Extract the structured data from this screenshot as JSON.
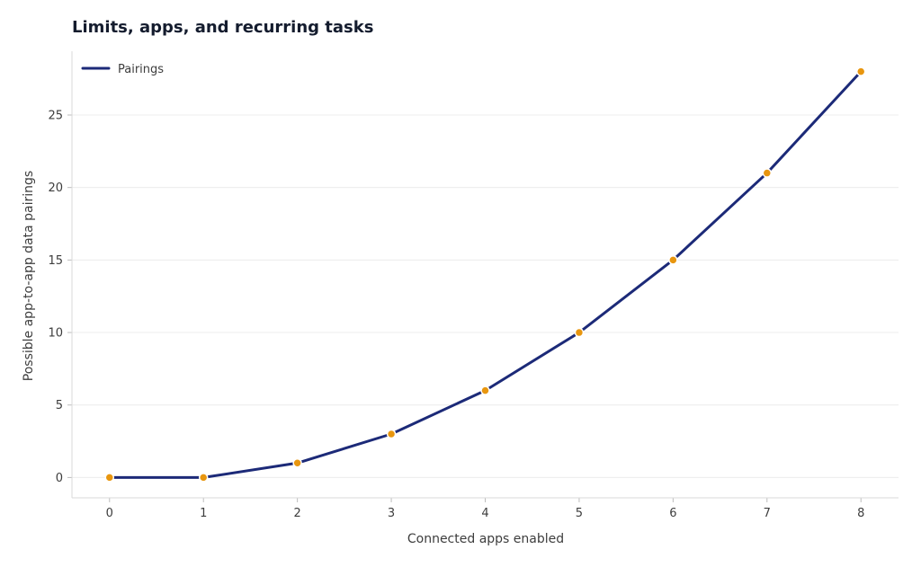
{
  "chart_data": {
    "type": "line",
    "title": "Limits, apps, and recurring tasks",
    "xlabel": "Connected apps enabled",
    "ylabel": "Possible app-to-app data pairings",
    "x": [
      0,
      1,
      2,
      3,
      4,
      5,
      6,
      7,
      8
    ],
    "xlim": [
      -0.4,
      8.4
    ],
    "ylim": [
      -1.4,
      29.4
    ],
    "xticks": [
      0,
      1,
      2,
      3,
      4,
      5,
      6,
      7,
      8
    ],
    "yticks": [
      0,
      5,
      10,
      15,
      20,
      25
    ],
    "grid": "horizontal",
    "legend_position": "top-left",
    "series": [
      {
        "name": "Pairings",
        "values": [
          0,
          0,
          1,
          3,
          6,
          10,
          15,
          21,
          28
        ],
        "line_color": "#1c2a78",
        "marker_color": "#e8960f"
      }
    ],
    "colors": {
      "grid": "#ececec",
      "axis": "#d9d9d9",
      "text": "#3d3d3d"
    }
  }
}
